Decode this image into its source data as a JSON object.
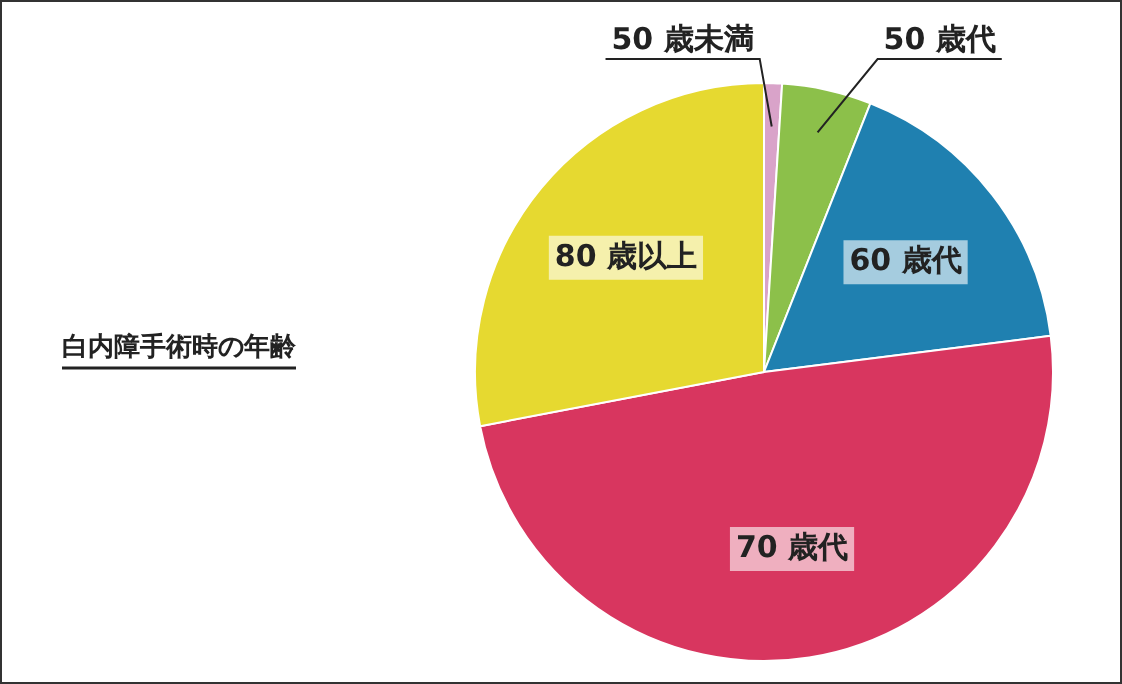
{
  "chart_data": {
    "type": "pie",
    "title": "白内障手術時の年齢",
    "categories": [
      "50 歳未満",
      "50 歳代",
      "60 歳代",
      "70 歳代",
      "80 歳以上"
    ],
    "values": [
      1,
      5,
      17,
      49,
      28
    ],
    "colors": [
      "#d9a3c9",
      "#8cc04a",
      "#1f80b0",
      "#d8365f",
      "#e6d930"
    ],
    "legend": false
  }
}
